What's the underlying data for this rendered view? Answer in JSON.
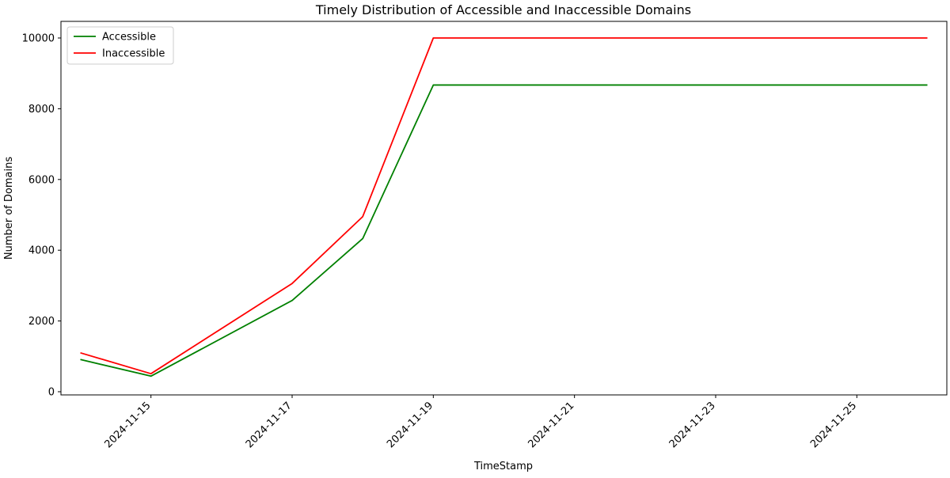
{
  "chart_data": {
    "type": "line",
    "title": "Timely Distribution of Accessible and Inaccessible Domains",
    "xlabel": "TimeStamp",
    "ylabel": "Number of Domains",
    "x": [
      "2024-11-14",
      "2024-11-15",
      "2024-11-17",
      "2024-11-18",
      "2024-11-19",
      "2024-11-26"
    ],
    "series": [
      {
        "name": "Accessible",
        "color": "#008000",
        "values": [
          910,
          440,
          2580,
          4330,
          8670,
          8670
        ]
      },
      {
        "name": "Inaccessible",
        "color": "#ff0000",
        "values": [
          1100,
          510,
          3060,
          4950,
          10000,
          10000
        ]
      }
    ],
    "xlim": [
      "2024-11-13",
      "2024-11-26"
    ],
    "ylim": [
      -90,
      10470
    ],
    "x_ticks": [
      "2024-11-15",
      "2024-11-17",
      "2024-11-19",
      "2024-11-21",
      "2024-11-23",
      "2024-11-25"
    ],
    "y_ticks": [
      0,
      2000,
      4000,
      6000,
      8000,
      10000
    ],
    "grid": false,
    "legend_position": "top-left"
  }
}
